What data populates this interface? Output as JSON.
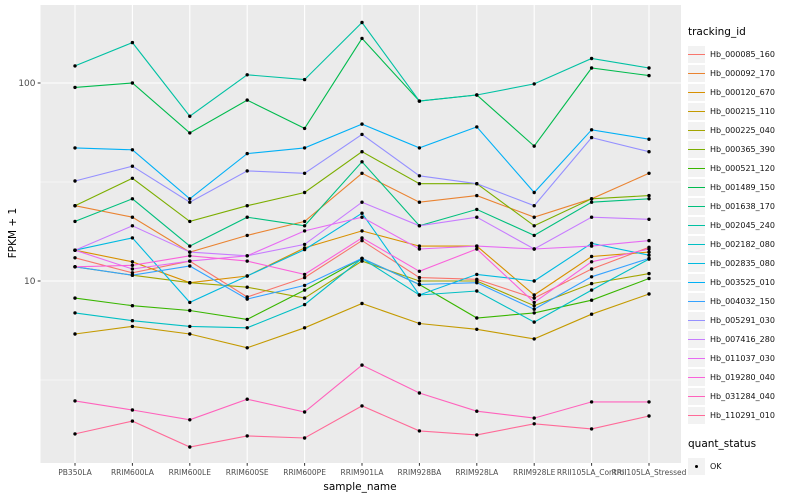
{
  "figure": {
    "panel_bg": "#EBEBEB",
    "grid_color": "#FFFFFF",
    "tick_text_color": "#4D4D4D",
    "point_color": "#000000",
    "legend_key_bg": "#F2F2F2"
  },
  "chart_data": {
    "type": "line",
    "title": "",
    "xlabel": "sample_name",
    "ylabel": "FPKM + 1",
    "y_scale": "log10",
    "y_ticks": [
      100,
      10
    ],
    "y_tick_labels": [
      "100",
      "10"
    ],
    "y_minor_ticks": [
      31.623,
      3.1623
    ],
    "grid": "on",
    "legend_position": "right",
    "legend": {
      "title": "tracking_id"
    },
    "legend2": {
      "title": "quant_status",
      "items": [
        {
          "label": "OK",
          "marker": "point"
        }
      ]
    },
    "categories": [
      "PB350LA",
      "RRIM600LA",
      "RRIM600LE",
      "RRIM600SE",
      "RRIM600PE",
      "RRIM901LA",
      "RRIM928BA",
      "RRIM928LA",
      "RRIM928LE",
      "RRII105LA_Control",
      "RRII105LA_Stressed"
    ],
    "series": [
      {
        "name": "Hb_000085_160",
        "color": "#F8766D",
        "values": [
          13.1,
          11.0,
          12.6,
          8.3,
          10.4,
          16.0,
          10.4,
          10.2,
          8.2,
          11.5,
          14.8
        ]
      },
      {
        "name": "Hb_000092_170",
        "color": "#EA8331",
        "values": [
          24,
          21,
          14,
          17,
          20,
          35,
          25,
          27,
          21,
          26,
          35
        ]
      },
      {
        "name": "Hb_000120_670",
        "color": "#D89000",
        "values": [
          14.3,
          12.5,
          9.8,
          10.6,
          14.7,
          17.9,
          15.0,
          15.0,
          8.5,
          13.3,
          14.0
        ]
      },
      {
        "name": "Hb_000215_110",
        "color": "#C49A00",
        "values": [
          5.4,
          5.9,
          5.4,
          4.6,
          5.8,
          7.7,
          6.1,
          5.7,
          5.1,
          6.8,
          8.6
        ]
      },
      {
        "name": "Hb_000225_040",
        "color": "#A3A500",
        "values": [
          11.8,
          10.7,
          9.8,
          9.3,
          8.2,
          12.6,
          10.0,
          10.0,
          7.5,
          9.7,
          10.9
        ]
      },
      {
        "name": "Hb_000365_390",
        "color": "#7CAE00",
        "values": [
          24,
          33,
          20,
          24,
          28,
          45,
          31,
          31,
          19,
          26,
          27
        ]
      },
      {
        "name": "Hb_000521_120",
        "color": "#39B600",
        "values": [
          8.2,
          7.5,
          7.1,
          6.4,
          9.0,
          13.0,
          9.6,
          6.5,
          6.9,
          8.0,
          10.3
        ]
      },
      {
        "name": "Hb_001489_150",
        "color": "#00BB4E",
        "values": [
          95,
          100,
          56,
          82,
          59,
          168,
          81,
          87,
          48,
          119,
          109
        ]
      },
      {
        "name": "Hb_001638_170",
        "color": "#00BF7D",
        "values": [
          20,
          26,
          15,
          21,
          19,
          40,
          19,
          23,
          17,
          25,
          26
        ]
      },
      {
        "name": "Hb_002045_240",
        "color": "#00C1A3",
        "values": [
          122,
          160,
          68,
          110,
          104,
          202,
          81,
          87,
          99,
          133,
          119
        ]
      },
      {
        "name": "Hb_002182_080",
        "color": "#00BFC4",
        "values": [
          6.9,
          6.3,
          5.9,
          5.8,
          7.6,
          13.0,
          8.5,
          8.9,
          6.2,
          9.0,
          12.9
        ]
      },
      {
        "name": "Hb_002835_080",
        "color": "#00BAE0",
        "values": [
          14.3,
          16.5,
          7.8,
          10.6,
          14.4,
          22,
          8.5,
          10.8,
          10.0,
          15.5,
          13.5
        ]
      },
      {
        "name": "Hb_003525_010",
        "color": "#00B0F6",
        "values": [
          47,
          46,
          26,
          44,
          47,
          62,
          47,
          60,
          28,
          58,
          52
        ]
      },
      {
        "name": "Hb_004032_150",
        "color": "#35A2FF",
        "values": [
          11.8,
          10.7,
          11.9,
          8.1,
          9.5,
          13.0,
          9.6,
          9.8,
          7.2,
          10.5,
          13.0
        ]
      },
      {
        "name": "Hb_005291_030",
        "color": "#9590FF",
        "values": [
          32,
          38,
          25,
          36,
          35,
          55,
          34,
          31,
          24,
          53,
          45
        ]
      },
      {
        "name": "Hb_007416_280",
        "color": "#C77CFF",
        "values": [
          14.3,
          19,
          14.0,
          13.4,
          15.3,
          25,
          19,
          21,
          14.5,
          21,
          20.5
        ]
      },
      {
        "name": "Hb_011037_030",
        "color": "#E76BF3",
        "values": [
          14.3,
          11.5,
          12.6,
          13.4,
          17.9,
          21,
          14.5,
          15,
          14.5,
          15,
          16
        ]
      },
      {
        "name": "Hb_019280_040",
        "color": "#FA62DB",
        "values": [
          11.8,
          12.0,
          13.4,
          12.6,
          10.8,
          16.5,
          11.2,
          14.5,
          7.8,
          12.5,
          14.5
        ]
      },
      {
        "name": "Hb_031284_040",
        "color": "#FF62BC",
        "values": [
          2.48,
          2.23,
          1.99,
          2.53,
          2.18,
          3.76,
          2.72,
          2.2,
          2.03,
          2.45,
          2.45
        ]
      },
      {
        "name": "Hb_110291_010",
        "color": "#FF6A98",
        "values": [
          1.69,
          1.96,
          1.45,
          1.65,
          1.61,
          2.34,
          1.75,
          1.67,
          1.9,
          1.79,
          2.08
        ]
      }
    ]
  }
}
